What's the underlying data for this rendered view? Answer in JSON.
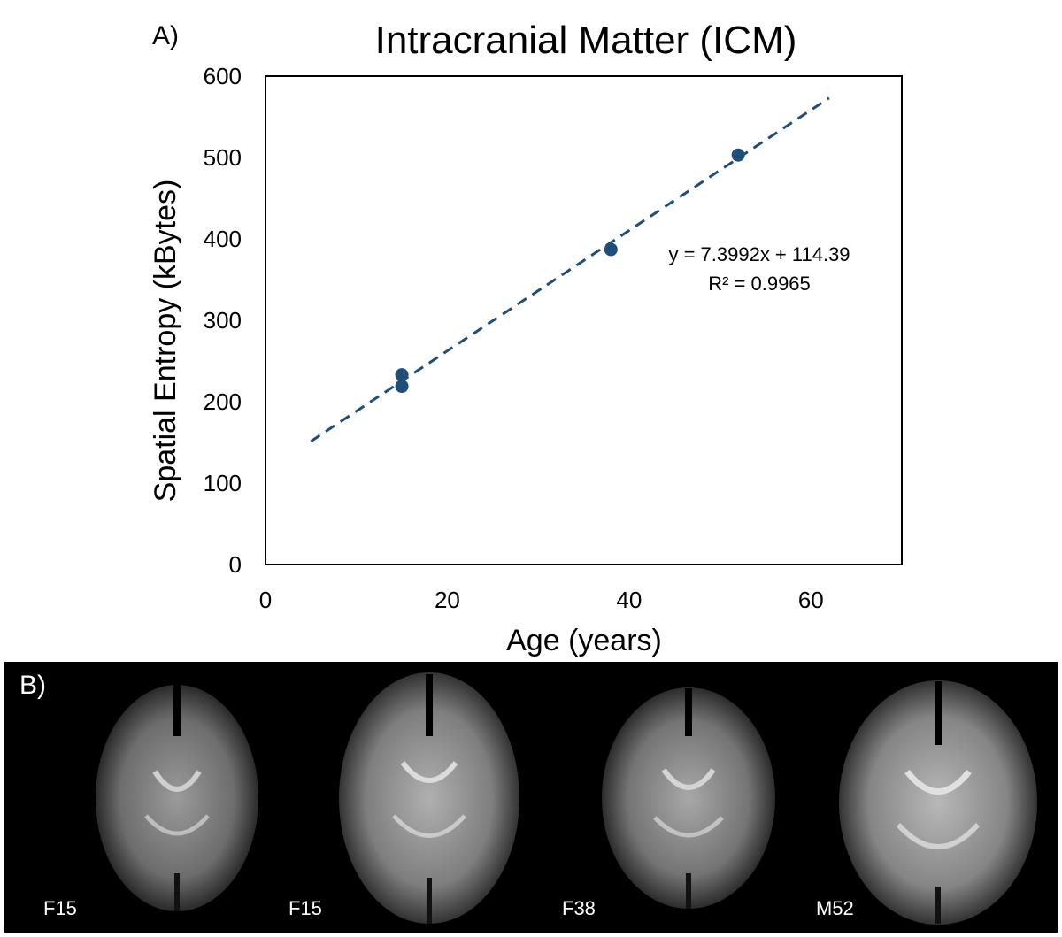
{
  "colors": {
    "marker": "#1f4e79",
    "trendline": "#1f4e79",
    "panel_bg": "#000000"
  },
  "panel_a": {
    "label": "A)"
  },
  "chart_data": {
    "type": "scatter",
    "title": "Intracranial Matter (ICM)",
    "xlabel": "Age (years)",
    "ylabel": "Spatial Entropy (kBytes)",
    "xlim": [
      0,
      70
    ],
    "ylim": [
      0,
      600
    ],
    "xticks": [
      0,
      20,
      40,
      60
    ],
    "yticks": [
      0,
      100,
      200,
      300,
      400,
      500,
      600
    ],
    "series": [
      {
        "name": "ICM",
        "x": [
          15,
          15,
          38,
          52
        ],
        "y": [
          233,
          219,
          387,
          503
        ]
      }
    ],
    "trendline": {
      "slope": 7.3992,
      "intercept": 114.39,
      "x_range": [
        5,
        62
      ],
      "equation": "y = 7.3992x + 114.39",
      "r_squared": "R² = 0.9965"
    }
  },
  "panel_b": {
    "label": "B)",
    "scans": [
      {
        "caption": "F15"
      },
      {
        "caption": "F15"
      },
      {
        "caption": "F38"
      },
      {
        "caption": "M52"
      }
    ]
  }
}
